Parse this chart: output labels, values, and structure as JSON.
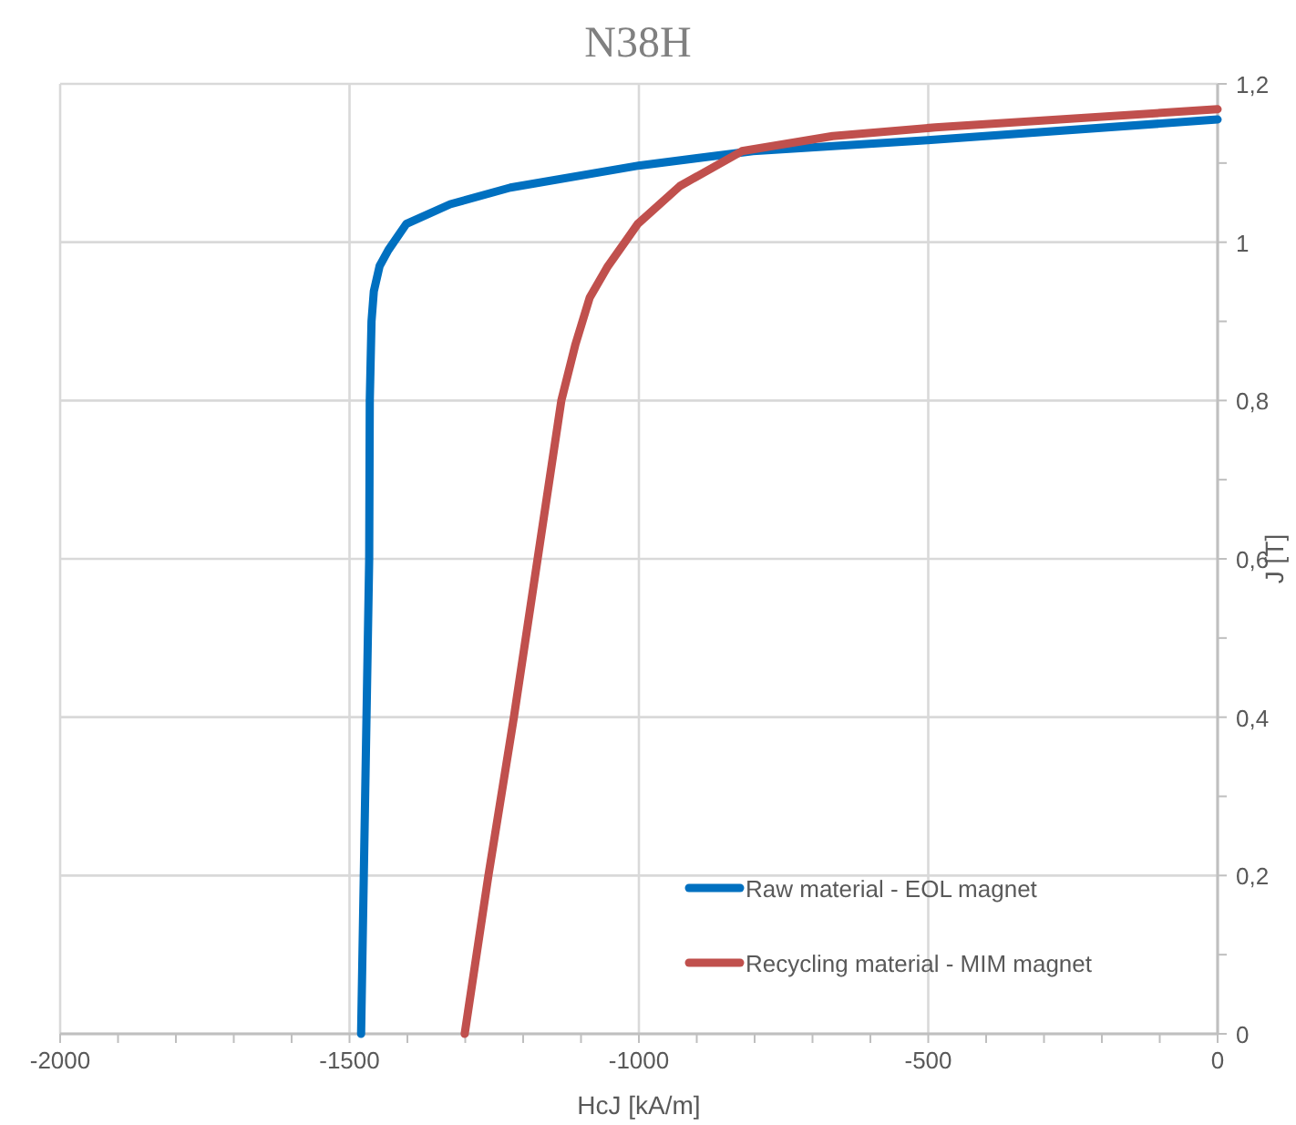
{
  "chart_data": {
    "type": "line",
    "title": "N38H",
    "xlabel": "HcJ [kA/m]",
    "ylabel": "J [T]",
    "xlim": [
      -2000,
      0
    ],
    "xticks": [
      -2000,
      {
        "value": -1900,
        "label": null
      },
      {
        "value": -1800,
        "label": null
      },
      {
        "value": -1700,
        "label": null
      },
      {
        "value": -1600,
        "label": null
      },
      -1500,
      {
        "value": -1400,
        "label": null
      },
      {
        "value": -1300,
        "label": null
      },
      {
        "value": -1200,
        "label": null
      },
      {
        "value": -1100,
        "label": null
      },
      -1000,
      {
        "value": -900,
        "label": null
      },
      {
        "value": -800,
        "label": null
      },
      {
        "value": -700,
        "label": null
      },
      {
        "value": -600,
        "label": null
      },
      -500,
      {
        "value": -400,
        "label": null
      },
      {
        "value": -300,
        "label": null
      },
      {
        "value": -200,
        "label": null
      },
      {
        "value": -100,
        "label": null
      },
      0
    ],
    "ylim": [
      0,
      1.2
    ],
    "yticks": [
      0,
      {
        "value": 0.1,
        "label": null
      },
      {
        "value": 0.2,
        "label": "0,2"
      },
      {
        "value": 0.3,
        "label": null
      },
      {
        "value": 0.4,
        "label": "0,4"
      },
      {
        "value": 0.5,
        "label": null
      },
      {
        "value": 0.6,
        "label": "0,6"
      },
      {
        "value": 0.7,
        "label": null
      },
      {
        "value": 0.8,
        "label": "0,8"
      },
      {
        "value": 0.9,
        "label": null
      },
      1,
      {
        "value": 1.1,
        "label": null
      },
      {
        "value": 1.2,
        "label": "1,2"
      }
    ],
    "grid": true,
    "legend": "bottom right",
    "marker": "none",
    "line_style": "solid",
    "series": [
      {
        "name": "Raw material - EOL magnet",
        "color": "#0070c0",
        "x": [
          -1480,
          -1473,
          -1466,
          -1465,
          -1462,
          -1458,
          -1448,
          -1433,
          -1402,
          -1326,
          -1222,
          -998,
          -803,
          -501,
          0
        ],
        "values": [
          0,
          0.3,
          0.6,
          0.8,
          0.9,
          0.938,
          0.97,
          0.99,
          1.023,
          1.048,
          1.069,
          1.097,
          1.115,
          1.129,
          1.155
        ]
      },
      {
        "name": "Recycling material - MIM magnet",
        "color": "#c0504d",
        "x": [
          -1301,
          -1260,
          -1216,
          -1175,
          -1134,
          -1110,
          -1085,
          -1055,
          -1002,
          -929,
          -822,
          -665,
          -488,
          0
        ],
        "values": [
          0,
          0.2,
          0.4,
          0.6,
          0.8,
          0.87,
          0.93,
          0.968,
          1.023,
          1.071,
          1.115,
          1.134,
          1.145,
          1.168
        ]
      }
    ]
  }
}
